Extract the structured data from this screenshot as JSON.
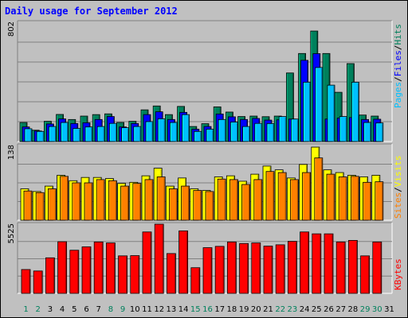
{
  "title": "Daily usage for September 2012",
  "colors": {
    "hits": "#00805c",
    "files": "#0000ff",
    "pages": "#00c0ff",
    "visits": "#ffff00",
    "sites": "#ff8000",
    "kbytes": "#ff0000",
    "weekend_day": "#00805c",
    "weekday_day": "#000000"
  },
  "chart_data": [
    {
      "type": "bar",
      "title": "Daily usage for September 2012",
      "ylabel_parts": [
        "Pages",
        "/",
        "Files",
        "/",
        "Hits"
      ],
      "ymax_label": "802",
      "ylim": [
        0,
        802
      ],
      "categories": [
        "1",
        "2",
        "3",
        "4",
        "5",
        "6",
        "7",
        "8",
        "9",
        "10",
        "11",
        "12",
        "13",
        "14",
        "15",
        "16",
        "17",
        "18",
        "19",
        "20",
        "21",
        "22",
        "23",
        "24",
        "25",
        "26",
        "27",
        "28",
        "29",
        "30",
        "31"
      ],
      "weekend_days": [
        "1",
        "2",
        "8",
        "9",
        "15",
        "16",
        "22",
        "23",
        "29",
        "30"
      ],
      "series": [
        {
          "name": "Hits",
          "color": "#00805c",
          "values": [
            128,
            76,
            136,
            182,
            148,
            171,
            181,
            186,
            128,
            136,
            213,
            239,
            181,
            236,
            101,
            120,
            233,
            198,
            168,
            171,
            167,
            171,
            461,
            592,
            743,
            592,
            331,
            524,
            178,
            171,
            0
          ]
        },
        {
          "name": "Files",
          "color": "#0000ff",
          "values": [
            98,
            71,
            118,
            152,
            121,
            126,
            148,
            168,
            98,
            121,
            181,
            200,
            148,
            196,
            83,
            101,
            185,
            166,
            148,
            155,
            144,
            146,
            151,
            546,
            591,
            151,
            158,
            161,
            148,
            150,
            0
          ]
        },
        {
          "name": "Pages",
          "color": "#00c0ff",
          "values": [
            86,
            68,
            101,
            128,
            88,
            98,
            101,
            122,
            93,
            101,
            134,
            153,
            128,
            181,
            68,
            83,
            148,
            131,
            101,
            122,
            121,
            168,
            151,
            399,
            498,
            379,
            168,
            399,
            128,
            125,
            0
          ]
        }
      ]
    },
    {
      "type": "bar",
      "ylabel_parts": [
        "Sites",
        "/",
        "Visits"
      ],
      "ymax_label": "138",
      "ylim": [
        0,
        138
      ],
      "categories": [
        "1",
        "2",
        "3",
        "4",
        "5",
        "6",
        "7",
        "8",
        "9",
        "10",
        "11",
        "12",
        "13",
        "14",
        "15",
        "16",
        "17",
        "18",
        "19",
        "20",
        "21",
        "22",
        "23",
        "24",
        "25",
        "26",
        "27",
        "28",
        "29",
        "30",
        "31"
      ],
      "series": [
        {
          "name": "Visits",
          "color": "#ffff00",
          "values": [
            58,
            53,
            63,
            83,
            73,
            79,
            79,
            77,
            68,
            70,
            82,
            96,
            63,
            78,
            58,
            55,
            80,
            82,
            72,
            85,
            100,
            93,
            78,
            103,
            135,
            93,
            88,
            83,
            80,
            83,
            0
          ]
        },
        {
          "name": "Sites",
          "color": "#ff8000",
          "values": [
            54,
            51,
            58,
            81,
            69,
            69,
            75,
            73,
            63,
            68,
            75,
            80,
            58,
            63,
            55,
            53,
            76,
            75,
            66,
            75,
            90,
            88,
            75,
            88,
            115,
            85,
            80,
            81,
            70,
            71,
            0
          ]
        }
      ]
    },
    {
      "type": "bar",
      "ylabel_parts": [
        "KBytes"
      ],
      "ymax_label": "5525",
      "ylim": [
        0,
        5525
      ],
      "categories": [
        "1",
        "2",
        "3",
        "4",
        "5",
        "6",
        "7",
        "8",
        "9",
        "10",
        "11",
        "12",
        "13",
        "14",
        "15",
        "16",
        "17",
        "18",
        "19",
        "20",
        "21",
        "22",
        "23",
        "24",
        "25",
        "26",
        "27",
        "28",
        "29",
        "30",
        "31"
      ],
      "series": [
        {
          "name": "KBytes",
          "color": "#ff0000",
          "values": [
            1905,
            1788,
            2840,
            4125,
            3445,
            3715,
            4105,
            4030,
            2995,
            3015,
            4905,
            5525,
            3180,
            4990,
            2050,
            3650,
            3755,
            4105,
            3980,
            4030,
            3775,
            3880,
            4155,
            4905,
            4755,
            4755,
            4105,
            4230,
            2995,
            4105,
            0
          ]
        }
      ]
    }
  ]
}
